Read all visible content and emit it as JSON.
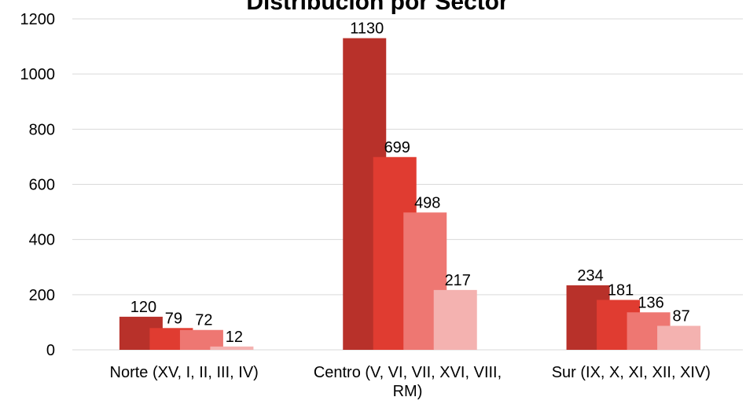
{
  "chart_data": {
    "type": "bar",
    "title": "Distribución por Sector",
    "categories": [
      "Norte (XV, I, II, III, IV)",
      "Centro (V, VI, VII, XVI, VIII, RM)",
      "Sur (IX, X, XI, XII, XIV)"
    ],
    "series": [
      {
        "color": "#b8312a",
        "values": [
          120,
          1130,
          234
        ]
      },
      {
        "color": "#e03c31",
        "values": [
          79,
          699,
          181
        ]
      },
      {
        "color": "#ee7772",
        "values": [
          72,
          498,
          136
        ]
      },
      {
        "color": "#f4b2b0",
        "values": [
          12,
          217,
          87
        ]
      }
    ],
    "ylim": [
      0,
      1200
    ],
    "yticks": [
      0,
      200,
      400,
      600,
      800,
      1000,
      1200
    ],
    "grid": true
  }
}
